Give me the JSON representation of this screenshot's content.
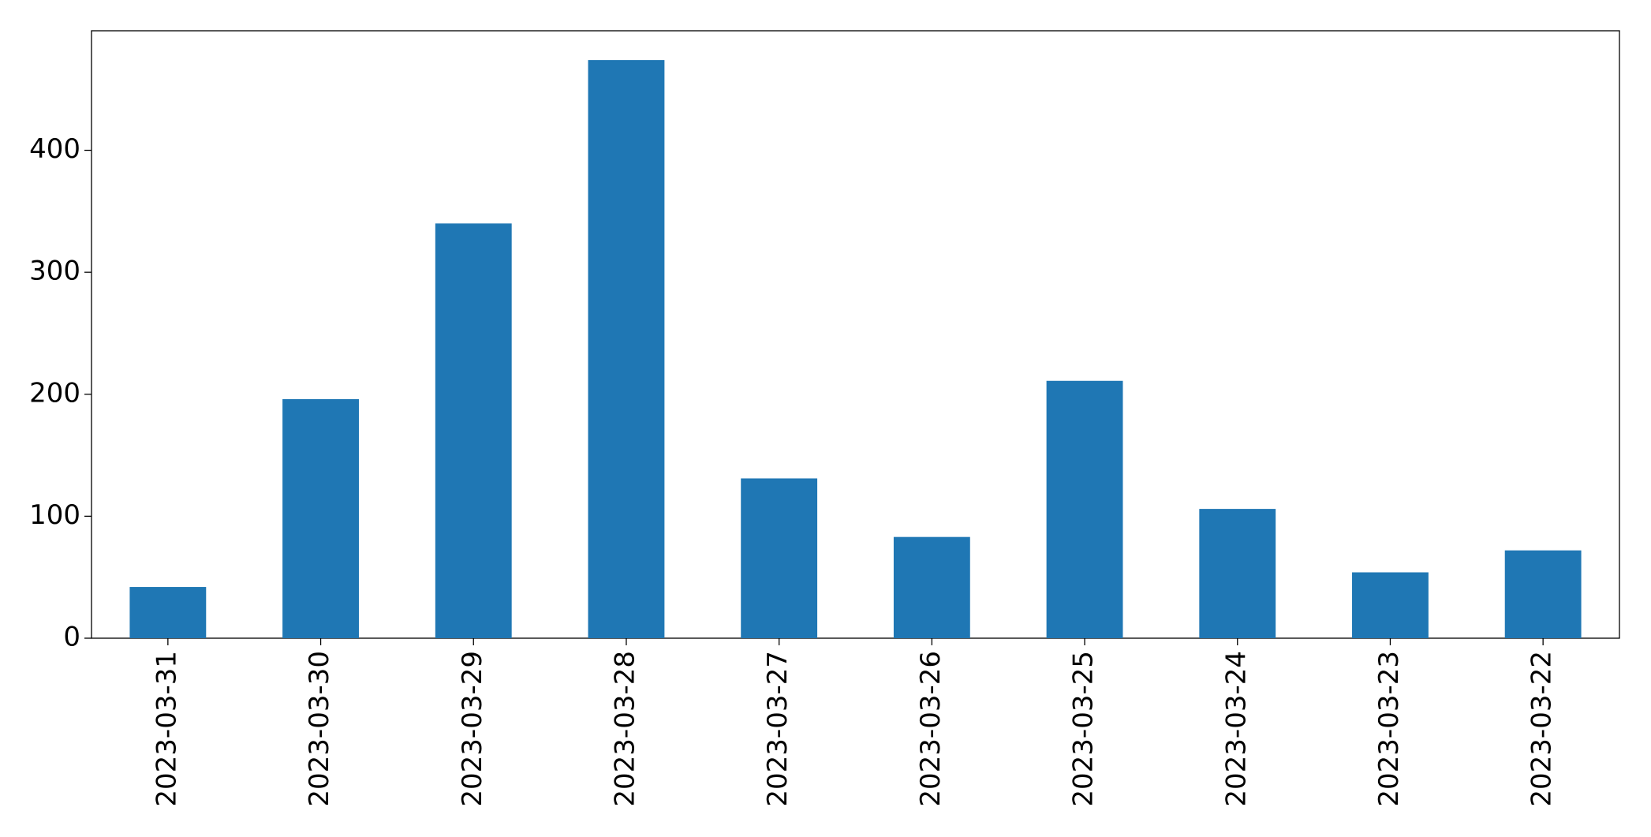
{
  "chart_data": {
    "type": "bar",
    "categories": [
      "2023-03-31",
      "2023-03-30",
      "2023-03-29",
      "2023-03-28",
      "2023-03-27",
      "2023-03-26",
      "2023-03-25",
      "2023-03-24",
      "2023-03-23",
      "2023-03-22"
    ],
    "values": [
      42,
      196,
      340,
      474,
      131,
      83,
      211,
      106,
      54,
      72
    ],
    "color": "#1f77b4",
    "ylim": [
      0,
      498
    ],
    "yticks": [
      0,
      100,
      200,
      300,
      400
    ],
    "grid": false
  }
}
